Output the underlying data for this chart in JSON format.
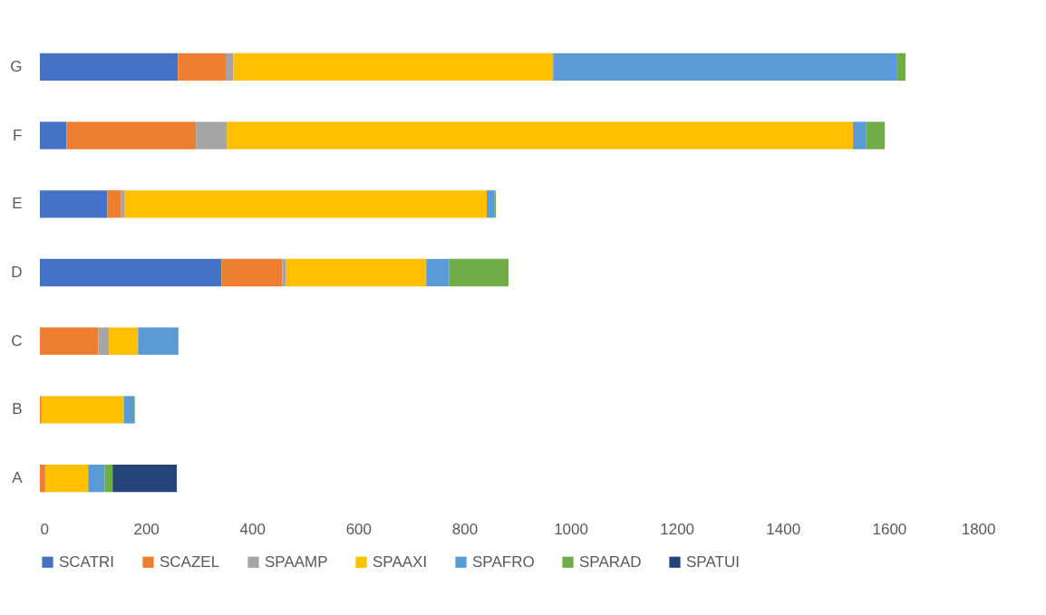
{
  "chart_data": {
    "type": "bar",
    "orientation": "horizontal",
    "stacked": true,
    "categories": [
      "G",
      "F",
      "E",
      "D",
      "C",
      "B",
      "A"
    ],
    "series": [
      {
        "name": "SCATRI",
        "color": "#4472c4",
        "values": [
          260,
          50,
          127,
          342,
          0,
          0,
          0
        ]
      },
      {
        "name": "SCAZEL",
        "color": "#ed7d31",
        "values": [
          90,
          244,
          26,
          115,
          110,
          3,
          10
        ]
      },
      {
        "name": "SPAAMP",
        "color": "#a5a5a5",
        "values": [
          14,
          58,
          6,
          6,
          20,
          0,
          0
        ]
      },
      {
        "name": "SPAAXI",
        "color": "#ffc000",
        "values": [
          603,
          1180,
          683,
          265,
          55,
          155,
          81
        ]
      },
      {
        "name": "SPAFRO",
        "color": "#5b9bd5",
        "values": [
          647,
          25,
          15,
          43,
          76,
          20,
          31
        ]
      },
      {
        "name": "SPARAD",
        "color": "#70ad47",
        "values": [
          17,
          35,
          2,
          112,
          0,
          1,
          15
        ]
      },
      {
        "name": "SPATUI",
        "color": "#264478",
        "values": [
          0,
          0,
          0,
          0,
          0,
          0,
          121
        ]
      }
    ],
    "xlim": [
      0,
      1800
    ],
    "xticks": [
      0,
      200,
      400,
      600,
      800,
      1000,
      1200,
      1400,
      1600,
      1800
    ],
    "grid": false,
    "legend": "bottom"
  }
}
